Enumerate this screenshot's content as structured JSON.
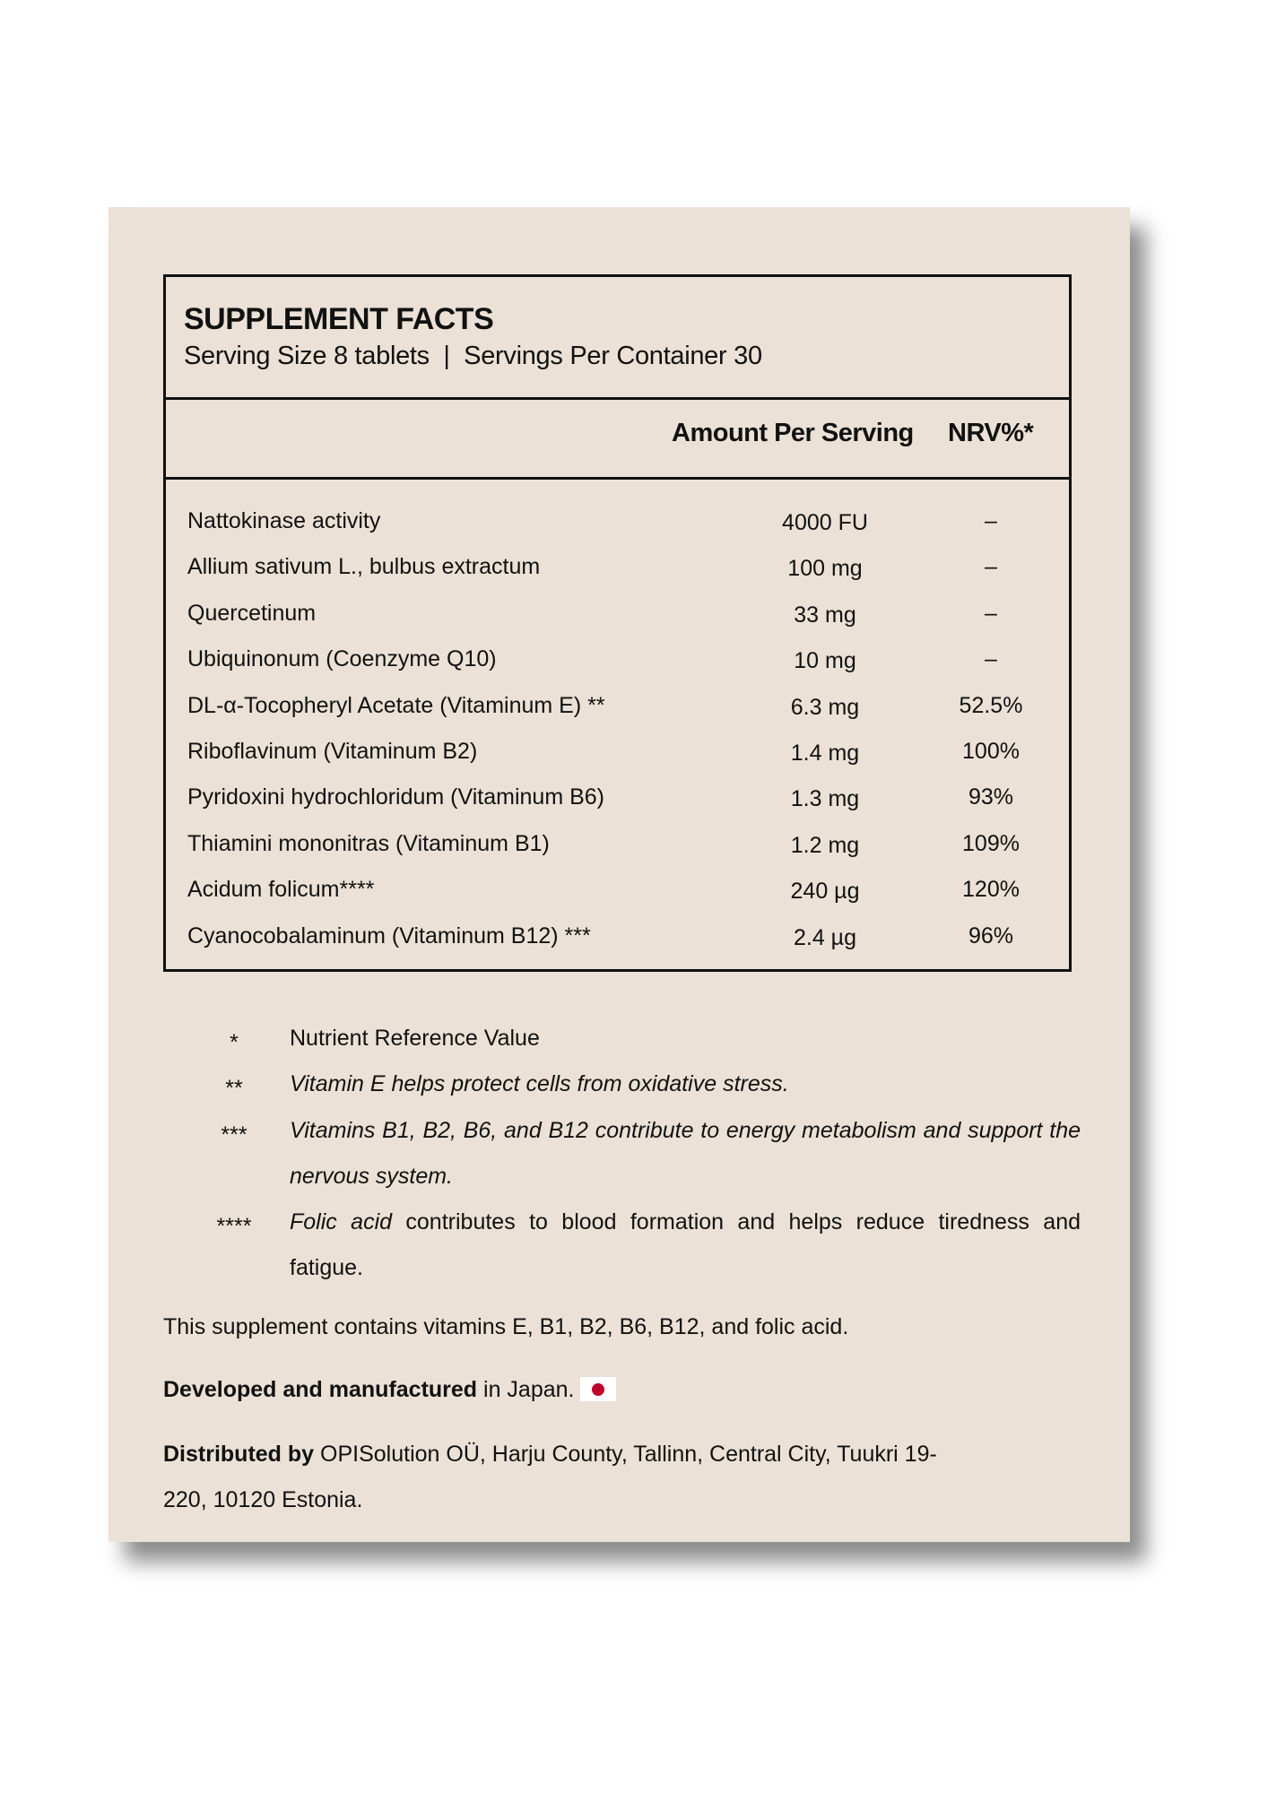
{
  "panel": {
    "title": "SUPPLEMENT FACTS",
    "serving": "Serving Size 8 tablets  |  Servings Per Container 30",
    "columns": {
      "amount": "Amount Per Serving",
      "nrv": "NRV%*"
    },
    "rows": [
      {
        "name": "Nattokinase activity",
        "amount": "4000 FU",
        "nrv": "–"
      },
      {
        "name": "Allium sativum L., bulbus extractum",
        "amount": "100 mg",
        "nrv": "–"
      },
      {
        "name": "Quercetinum",
        "amount": "33 mg",
        "nrv": "–"
      },
      {
        "name": "Ubiquinonum (Coenzyme Q10)",
        "amount": "10 mg",
        "nrv": "–"
      },
      {
        "name": "DL-α-Tocopheryl Acetate (Vitaminum E) **",
        "amount": "6.3 mg",
        "nrv": "52.5%"
      },
      {
        "name": "Riboflavinum (Vitaminum B2)",
        "amount": "1.4 mg",
        "nrv": "100%"
      },
      {
        "name": "Pyridoxini hydrochloridum (Vitaminum B6)",
        "amount": "1.3 mg",
        "nrv": "93%"
      },
      {
        "name": "Thiamini mononitras (Vitaminum B1)",
        "amount": "1.2 mg",
        "nrv": "109%"
      },
      {
        "name": "Acidum folicum****",
        "amount": "240 µg",
        "nrv": "120%"
      },
      {
        "name": "Cyanocobalaminum (Vitaminum B12) ***",
        "amount": "2.4 µg",
        "nrv": "96%"
      }
    ]
  },
  "footnotes": [
    {
      "mark": "*",
      "text": "Nutrient Reference Value"
    },
    {
      "mark": "**",
      "text": "Vitamin E helps protect cells from oxidative stress."
    },
    {
      "mark": "***",
      "text": "Vitamins B1, B2, B6, and B12 contribute to energy metabolism and support the nervous system."
    },
    {
      "mark": "****",
      "text_italic": "Folic acid",
      "text": " contributes to blood formation and helps reduce tiredness and fatigue."
    }
  ],
  "contains": "This supplement contains vitamins E, B1, B2, B6, B12, and folic acid.",
  "origin": {
    "bold": "Developed and manufactured",
    "text": " in Japan.",
    "flag_icon": "japan-flag-icon"
  },
  "distributor": {
    "bold": "Distributed by",
    "text": " OPISolution OÜ, Harju County, Tallinn, Central City, Tuukri 19-220, 10120 Estonia."
  },
  "colors": {
    "card": "#ebe1d6",
    "flag_red": "#bc002d"
  }
}
